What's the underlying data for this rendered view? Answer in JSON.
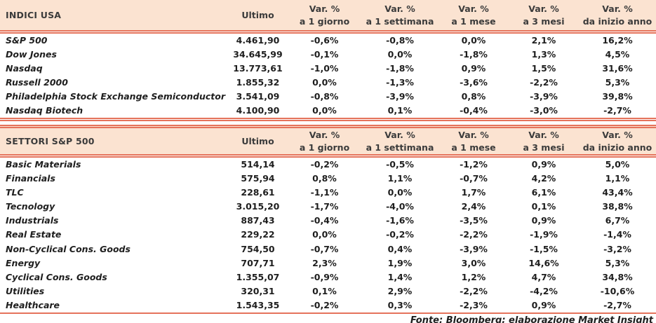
{
  "colors": {
    "header_bg": "#FBE3D1",
    "rule": "#E5735B",
    "text": "#3B3B3B",
    "body_text": "#1e1e1e"
  },
  "columns": {
    "ultimo": "Ultimo",
    "vars": [
      {
        "line1": "Var. %",
        "line2": "a 1 giorno"
      },
      {
        "line1": "Var. %",
        "line2": "a 1 settimana"
      },
      {
        "line1": "Var. %",
        "line2": "a 1 mese"
      },
      {
        "line1": "Var. %",
        "line2": "a 3 mesi"
      },
      {
        "line1": "Var. %",
        "line2": "da inizio anno"
      }
    ]
  },
  "tables": [
    {
      "title": "INDICI USA",
      "rows": [
        {
          "label": "S&P 500",
          "ultimo": "4.461,90",
          "var": [
            "-0,6%",
            "-0,8%",
            "0,0%",
            "2,1%",
            "16,2%"
          ]
        },
        {
          "label": "Dow Jones",
          "ultimo": "34.645,99",
          "var": [
            "-0,1%",
            "0,0%",
            "-1,8%",
            "1,3%",
            "4,5%"
          ]
        },
        {
          "label": "Nasdaq",
          "ultimo": "13.773,61",
          "var": [
            "-1,0%",
            "-1,8%",
            "0,9%",
            "1,5%",
            "31,6%"
          ]
        },
        {
          "label": "Russell 2000",
          "ultimo": "1.855,32",
          "var": [
            "0,0%",
            "-1,3%",
            "-3,6%",
            "-2,2%",
            "5,3%"
          ]
        },
        {
          "label": "Philadelphia Stock Exchange Semiconductor",
          "ultimo": "3.541,09",
          "var": [
            "-0,8%",
            "-3,9%",
            "0,8%",
            "-3,9%",
            "39,8%"
          ]
        },
        {
          "label": "Nasdaq Biotech",
          "ultimo": "4.100,90",
          "var": [
            "0,0%",
            "0,1%",
            "-0,4%",
            "-3,0%",
            "-2,7%"
          ]
        }
      ]
    },
    {
      "title": "SETTORI S&P 500",
      "rows": [
        {
          "label": "Basic Materials",
          "ultimo": "514,14",
          "var": [
            "-0,2%",
            "-0,5%",
            "-1,2%",
            "0,9%",
            "5,0%"
          ]
        },
        {
          "label": "Financials",
          "ultimo": "575,94",
          "var": [
            "0,8%",
            "1,1%",
            "-0,7%",
            "4,2%",
            "1,1%"
          ]
        },
        {
          "label": "TLC",
          "ultimo": "228,61",
          "var": [
            "-1,1%",
            "0,0%",
            "1,7%",
            "6,1%",
            "43,4%"
          ]
        },
        {
          "label": "Tecnology",
          "ultimo": "3.015,20",
          "var": [
            "-1,7%",
            "-4,0%",
            "2,4%",
            "0,1%",
            "38,8%"
          ]
        },
        {
          "label": "Industrials",
          "ultimo": "887,43",
          "var": [
            "-0,4%",
            "-1,6%",
            "-3,5%",
            "0,9%",
            "6,7%"
          ]
        },
        {
          "label": "Real Estate",
          "ultimo": "229,22",
          "var": [
            "0,0%",
            "-0,2%",
            "-2,2%",
            "-1,9%",
            "-1,4%"
          ]
        },
        {
          "label": "Non-Cyclical Cons. Goods",
          "ultimo": "754,50",
          "var": [
            "-0,7%",
            "0,4%",
            "-3,9%",
            "-1,5%",
            "-3,2%"
          ]
        },
        {
          "label": "Energy",
          "ultimo": "707,71",
          "var": [
            "2,3%",
            "1,9%",
            "3,0%",
            "14,6%",
            "5,3%"
          ]
        },
        {
          "label": "Cyclical Cons. Goods",
          "ultimo": "1.355,07",
          "var": [
            "-0,9%",
            "1,4%",
            "1,2%",
            "4,7%",
            "34,8%"
          ]
        },
        {
          "label": "Utilities",
          "ultimo": "320,31",
          "var": [
            "0,1%",
            "2,9%",
            "-2,2%",
            "-4,2%",
            "-10,6%"
          ]
        },
        {
          "label": "Healthcare",
          "ultimo": "1.543,35",
          "var": [
            "-0,2%",
            "0,3%",
            "-2,3%",
            "0,9%",
            "-2,7%"
          ]
        }
      ]
    }
  ],
  "footer": {
    "text": "Fonte: Bloomberg; elaborazione Market Insight"
  }
}
